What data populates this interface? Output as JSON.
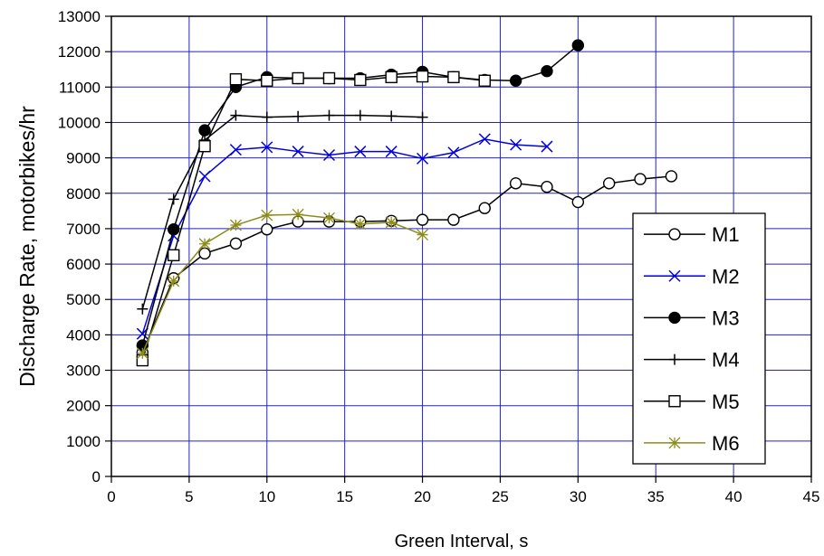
{
  "chart_data": {
    "type": "line",
    "xlabel": "Green Interval, s",
    "ylabel": "Discharge Rate, motorbikes/hr",
    "xlim": [
      0,
      45
    ],
    "ylim": [
      0,
      13000
    ],
    "xticks": [
      0,
      5,
      10,
      15,
      20,
      25,
      30,
      35,
      40,
      45
    ],
    "yticks": [
      0,
      1000,
      2000,
      3000,
      4000,
      5000,
      6000,
      7000,
      8000,
      9000,
      10000,
      11000,
      12000,
      13000
    ],
    "grid": true,
    "grid_color": "#2222cc",
    "legend_position": "right",
    "series": [
      {
        "name": "M1",
        "color": "#000000",
        "marker": "open-circle",
        "x": [
          2,
          4,
          6,
          8,
          10,
          12,
          14,
          16,
          18,
          20,
          22,
          24,
          26,
          28,
          30,
          32,
          34,
          36
        ],
        "y": [
          3500,
          5600,
          6300,
          6580,
          6980,
          7200,
          7200,
          7200,
          7220,
          7250,
          7250,
          7580,
          8280,
          8180,
          7750,
          8280,
          8400,
          8480
        ]
      },
      {
        "name": "M2",
        "color": "#0000dd",
        "marker": "x",
        "x": [
          2,
          4,
          6,
          8,
          10,
          12,
          14,
          16,
          18,
          20,
          22,
          24,
          26,
          28
        ],
        "y": [
          4030,
          6800,
          8480,
          9230,
          9300,
          9180,
          9080,
          9180,
          9180,
          8980,
          9150,
          9530,
          9370,
          9320
        ]
      },
      {
        "name": "M3",
        "color": "#000000",
        "marker": "filled-circle",
        "x": [
          2,
          4,
          6,
          8,
          10,
          12,
          14,
          16,
          18,
          20,
          22,
          24,
          26,
          28,
          30
        ],
        "y": [
          3700,
          6980,
          9780,
          11000,
          11280,
          11250,
          11250,
          11250,
          11350,
          11430,
          11280,
          11200,
          11180,
          11450,
          12180
        ]
      },
      {
        "name": "M4",
        "color": "#000000",
        "marker": "plus",
        "x": [
          2,
          4,
          6,
          8,
          10,
          12,
          14,
          16,
          18,
          20
        ],
        "y": [
          4730,
          7830,
          9500,
          10200,
          10150,
          10170,
          10200,
          10200,
          10180,
          10150
        ]
      },
      {
        "name": "M5",
        "color": "#000000",
        "marker": "open-square",
        "x": [
          2,
          4,
          6,
          8,
          10,
          12,
          14,
          16,
          18,
          20,
          22,
          24
        ],
        "y": [
          3280,
          6250,
          9330,
          11220,
          11180,
          11250,
          11250,
          11200,
          11280,
          11300,
          11280,
          11180
        ]
      },
      {
        "name": "M6",
        "color": "#8c8c1a",
        "marker": "asterisk",
        "x": [
          2,
          4,
          6,
          8,
          10,
          12,
          14,
          16,
          18,
          20
        ],
        "y": [
          3480,
          5520,
          6570,
          7100,
          7380,
          7400,
          7300,
          7130,
          7180,
          6830
        ]
      }
    ]
  }
}
